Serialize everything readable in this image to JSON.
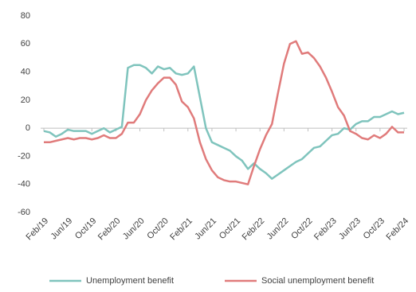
{
  "chart_data": {
    "type": "line",
    "categories": [
      "Feb/19",
      null,
      null,
      null,
      "Jun/19",
      null,
      null,
      null,
      "Oct/19",
      null,
      null,
      null,
      "Feb/20",
      null,
      null,
      null,
      "Jun/20",
      null,
      null,
      null,
      "Oct/20",
      null,
      null,
      null,
      "Feb/21",
      null,
      null,
      null,
      "Jun/21",
      null,
      null,
      null,
      "Oct/21",
      null,
      null,
      null,
      "Feb/22",
      null,
      null,
      null,
      "Jun/22",
      null,
      null,
      null,
      "Oct/22",
      null,
      null,
      null,
      "Feb/23",
      null,
      null,
      null,
      "Jun/23",
      null,
      null,
      null,
      "Oct/23",
      null,
      null,
      null,
      "Feb/24"
    ],
    "series": [
      {
        "name": "Unemployment benefit",
        "color": "#7fc4bd",
        "values": [
          -2,
          -3,
          -6,
          -4,
          -1,
          -2,
          -2,
          -2,
          -4,
          -2,
          0,
          -3,
          -1,
          1,
          43,
          45,
          45,
          43,
          39,
          44,
          42,
          43,
          39,
          38,
          39,
          44,
          22,
          0,
          -10,
          -12,
          -14,
          -16,
          -20,
          -23,
          -29,
          -25,
          -29,
          -32,
          -36,
          -33,
          -30,
          -27,
          -24,
          -22,
          -18,
          -14,
          -13,
          -9,
          -5,
          -4,
          0,
          -1,
          3,
          5,
          5,
          8,
          8,
          10,
          12,
          10,
          11
        ]
      },
      {
        "name": "Social unemployment benefit",
        "color": "#e07b7b",
        "values": [
          -10,
          -10,
          -9,
          -8,
          -7,
          -8,
          -7,
          -7,
          -8,
          -7,
          -5,
          -7,
          -7,
          -4,
          4,
          4,
          10,
          20,
          27,
          32,
          36,
          36,
          31,
          19,
          15,
          7,
          -10,
          -22,
          -30,
          -35,
          -37,
          -38,
          -38,
          -39,
          -40,
          -27,
          -15,
          -5,
          3,
          25,
          46,
          60,
          62,
          53,
          54,
          50,
          44,
          36,
          26,
          15,
          9,
          -2,
          -4,
          -7,
          -8,
          -5,
          -7,
          -4,
          1,
          -3,
          -3
        ]
      }
    ],
    "ylim": [
      -60,
      80
    ],
    "yticks": [
      -60,
      -40,
      -20,
      0,
      20,
      40,
      60,
      80
    ],
    "grid": false,
    "legend": "bottom"
  }
}
